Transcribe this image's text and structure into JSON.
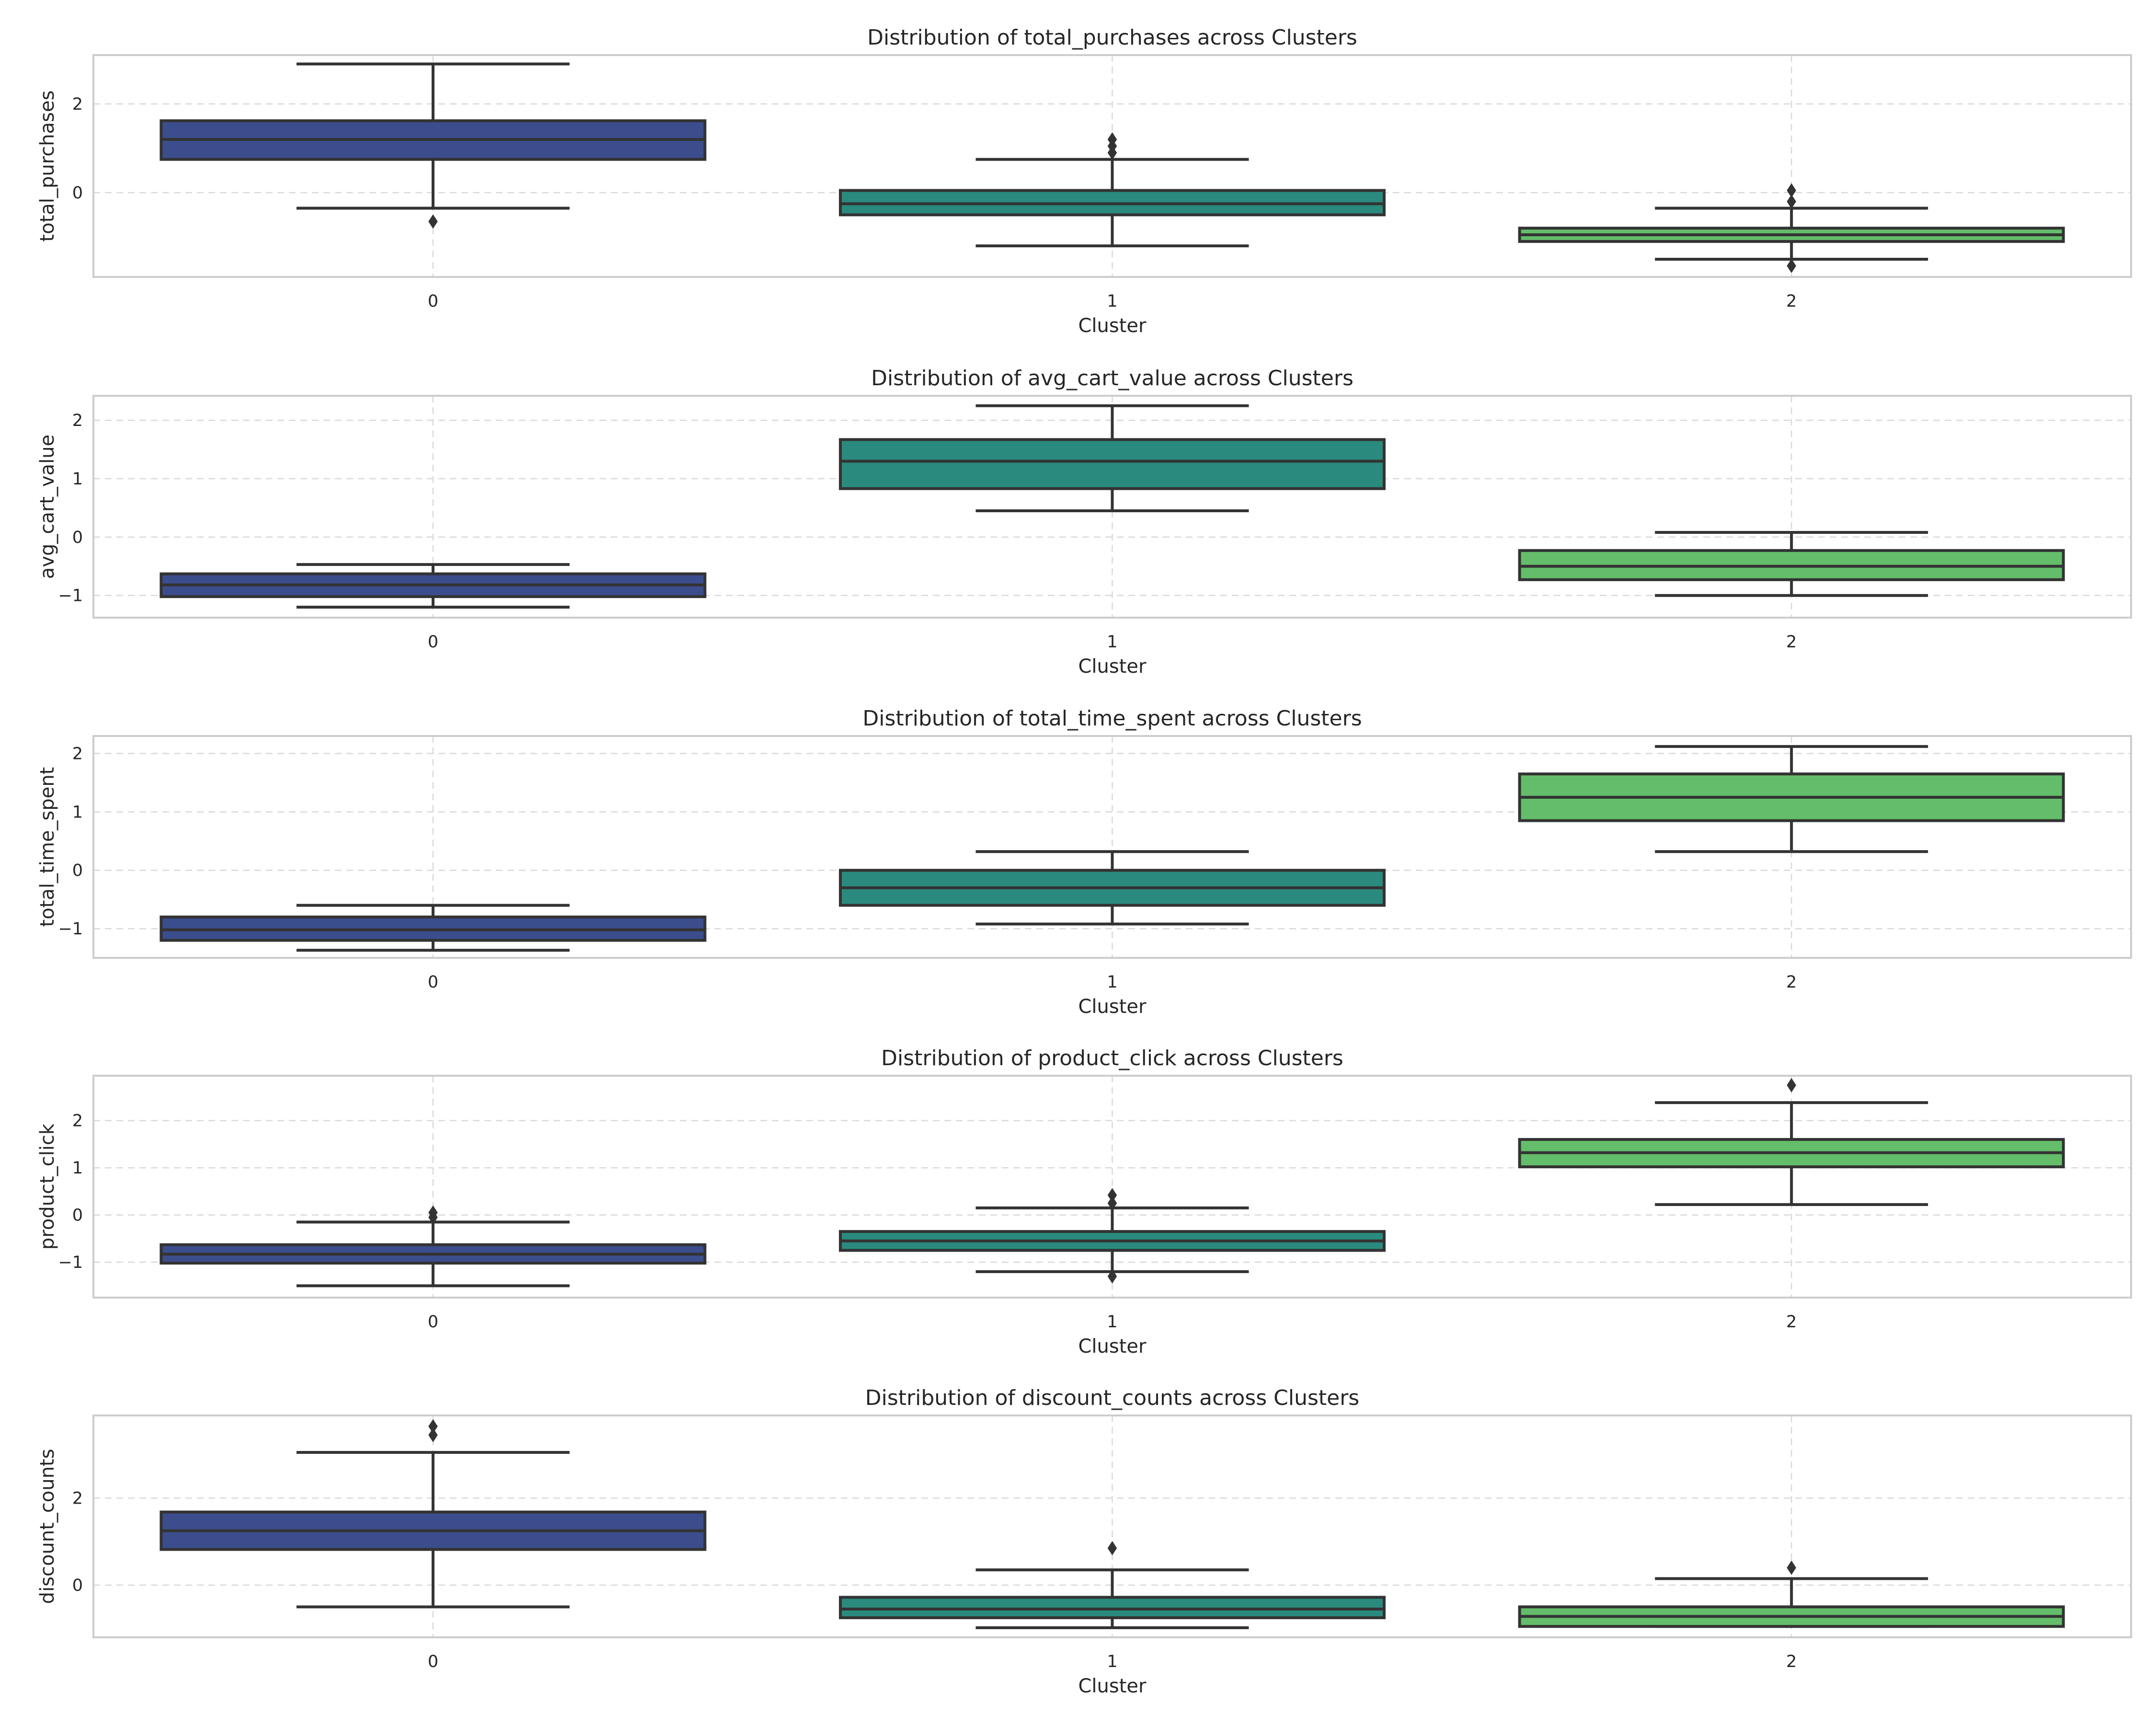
{
  "figure": {
    "cluster_colors": [
      "#3b4d8c",
      "#2a8a7e",
      "#64bd6a"
    ],
    "box_edge_color": "#333333"
  },
  "chart_data": [
    {
      "type": "box",
      "title": "Distribution of total_purchases across Clusters",
      "xlabel": "Cluster",
      "ylabel": "total_purchases",
      "categories": [
        "0",
        "1",
        "2"
      ],
      "ylim": [
        -1.9,
        3.1
      ],
      "yticks": [
        0,
        2
      ],
      "ytick_labels": [
        "0",
        "2"
      ],
      "grid": true,
      "boxes": [
        {
          "category": "0",
          "whisker_low": -0.35,
          "q1": 0.75,
          "median": 1.2,
          "q3": 1.62,
          "whisker_high": 2.9,
          "outliers": [
            -0.65
          ]
        },
        {
          "category": "1",
          "whisker_low": -1.2,
          "q1": -0.5,
          "median": -0.25,
          "q3": 0.05,
          "whisker_high": 0.75,
          "outliers": [
            0.9,
            1.05,
            1.2
          ]
        },
        {
          "category": "2",
          "whisker_low": -1.5,
          "q1": -1.1,
          "median": -0.95,
          "q3": -0.8,
          "whisker_high": -0.35,
          "outliers": [
            -1.65,
            -0.2,
            0.05
          ]
        }
      ]
    },
    {
      "type": "box",
      "title": "Distribution of avg_cart_value across Clusters",
      "xlabel": "Cluster",
      "ylabel": "avg_cart_value",
      "categories": [
        "0",
        "1",
        "2"
      ],
      "ylim": [
        -1.38,
        2.42
      ],
      "yticks": [
        -1,
        0,
        1,
        2
      ],
      "ytick_labels": [
        "−1",
        "0",
        "1",
        "2"
      ],
      "grid": true,
      "boxes": [
        {
          "category": "0",
          "whisker_low": -1.2,
          "q1": -1.02,
          "median": -0.82,
          "q3": -0.63,
          "whisker_high": -0.47,
          "outliers": []
        },
        {
          "category": "1",
          "whisker_low": 0.45,
          "q1": 0.83,
          "median": 1.3,
          "q3": 1.67,
          "whisker_high": 2.25,
          "outliers": []
        },
        {
          "category": "2",
          "whisker_low": -1.0,
          "q1": -0.73,
          "median": -0.5,
          "q3": -0.23,
          "whisker_high": 0.08,
          "outliers": []
        }
      ]
    },
    {
      "type": "box",
      "title": "Distribution of total_time_spent across Clusters",
      "xlabel": "Cluster",
      "ylabel": "total_time_spent",
      "categories": [
        "0",
        "1",
        "2"
      ],
      "ylim": [
        -1.5,
        2.3
      ],
      "yticks": [
        -1,
        0,
        1,
        2
      ],
      "ytick_labels": [
        "−1",
        "0",
        "1",
        "2"
      ],
      "grid": true,
      "boxes": [
        {
          "category": "0",
          "whisker_low": -1.37,
          "q1": -1.2,
          "median": -1.02,
          "q3": -0.8,
          "whisker_high": -0.6,
          "outliers": []
        },
        {
          "category": "1",
          "whisker_low": -0.92,
          "q1": -0.6,
          "median": -0.3,
          "q3": 0.0,
          "whisker_high": 0.32,
          "outliers": []
        },
        {
          "category": "2",
          "whisker_low": 0.32,
          "q1": 0.85,
          "median": 1.25,
          "q3": 1.65,
          "whisker_high": 2.12,
          "outliers": []
        }
      ]
    },
    {
      "type": "box",
      "title": "Distribution of product_click across Clusters",
      "xlabel": "Cluster",
      "ylabel": "product_click",
      "categories": [
        "0",
        "1",
        "2"
      ],
      "ylim": [
        -1.75,
        2.95
      ],
      "yticks": [
        -1,
        0,
        1,
        2
      ],
      "ytick_labels": [
        "−1",
        "0",
        "1",
        "2"
      ],
      "grid": true,
      "boxes": [
        {
          "category": "0",
          "whisker_low": -1.5,
          "q1": -1.02,
          "median": -0.83,
          "q3": -0.63,
          "whisker_high": -0.15,
          "outliers": [
            -0.05,
            0.05
          ]
        },
        {
          "category": "1",
          "whisker_low": -1.2,
          "q1": -0.75,
          "median": -0.55,
          "q3": -0.35,
          "whisker_high": 0.15,
          "outliers": [
            -1.3,
            0.25,
            0.42
          ]
        },
        {
          "category": "2",
          "whisker_low": 0.22,
          "q1": 1.02,
          "median": 1.32,
          "q3": 1.6,
          "whisker_high": 2.38,
          "outliers": [
            2.75
          ]
        }
      ]
    },
    {
      "type": "box",
      "title": "Distribution of discount_counts across Clusters",
      "xlabel": "Cluster",
      "ylabel": "discount_counts",
      "categories": [
        "0",
        "1",
        "2"
      ],
      "ylim": [
        -1.2,
        3.9
      ],
      "yticks": [
        0,
        2
      ],
      "ytick_labels": [
        "0",
        "2"
      ],
      "grid": true,
      "boxes": [
        {
          "category": "0",
          "whisker_low": -0.5,
          "q1": 0.82,
          "median": 1.25,
          "q3": 1.68,
          "whisker_high": 3.05,
          "outliers": [
            3.45,
            3.65
          ]
        },
        {
          "category": "1",
          "whisker_low": -0.98,
          "q1": -0.75,
          "median": -0.55,
          "q3": -0.28,
          "whisker_high": 0.35,
          "outliers": [
            0.85
          ]
        },
        {
          "category": "2",
          "whisker_low": -0.95,
          "q1": -0.95,
          "median": -0.72,
          "q3": -0.5,
          "whisker_high": 0.15,
          "outliers": [
            0.4
          ]
        }
      ]
    }
  ]
}
